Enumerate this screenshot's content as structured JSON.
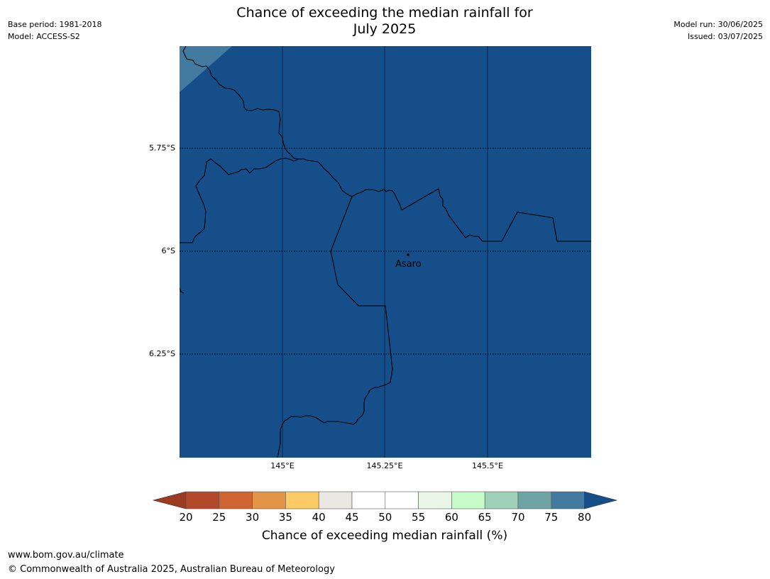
{
  "header": {
    "title_line1": "Chance of exceeding the median rainfall for",
    "title_line2": "July 2025",
    "base_period": "Base period: 1981-2018",
    "model": "Model: ACCESS-S2",
    "model_run": "Model run: 30/06/2025",
    "issued": "Issued: 03/07/2025"
  },
  "map": {
    "fill_color": "#154e88",
    "corner_fill_color": "#427aa0",
    "place": {
      "name": "Asaro"
    },
    "lat_labels": [
      "5.75°S",
      "6°S",
      "6.25°S"
    ],
    "lon_labels": [
      "145°E",
      "145.25°E",
      "145.5°E"
    ]
  },
  "colorbar": {
    "title": "Chance of exceeding median rainfall (%)",
    "ticks": [
      "20",
      "25",
      "30",
      "35",
      "40",
      "45",
      "50",
      "55",
      "60",
      "65",
      "70",
      "75",
      "80"
    ],
    "under_color": "#9c3a22",
    "over_color": "#154e88",
    "colors": [
      "#b1492a",
      "#cf6433",
      "#e39447",
      "#fdcb66",
      "#ebe7e3",
      "#ffffff",
      "#ffffff",
      "#e9f6e7",
      "#c9fbc9",
      "#9fd1b9",
      "#6ea4a4",
      "#427aa0"
    ]
  },
  "footer": {
    "url": "www.bom.gov.au/climate",
    "copyright": "© Commonwealth of Australia 2025, Australian Bureau of Meteorology"
  }
}
